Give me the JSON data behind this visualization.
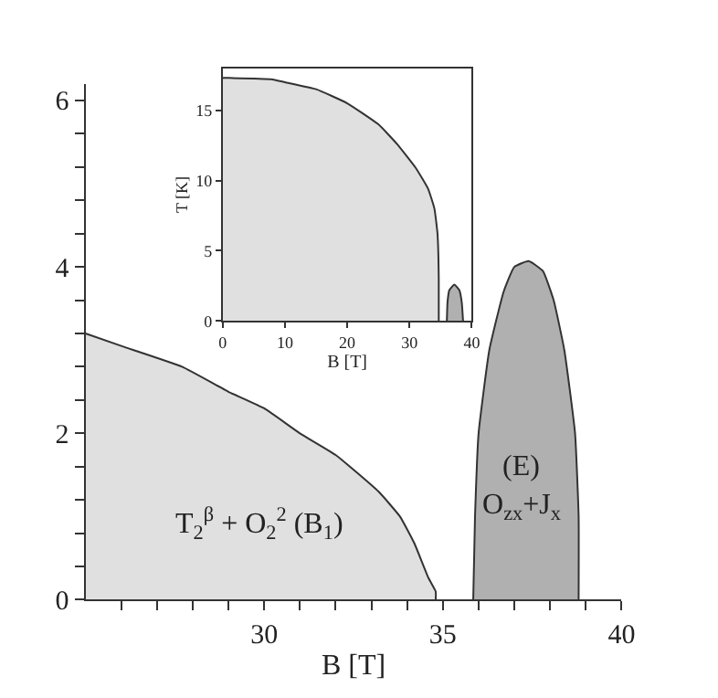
{
  "chart_data": [
    {
      "type": "area",
      "xlabel": "B [T]",
      "xlim": [
        25,
        40
      ],
      "ylim": [
        0,
        6.2
      ],
      "xticks": [
        {
          "value": 26,
          "label": null
        },
        {
          "value": 27,
          "label": null
        },
        {
          "value": 28,
          "label": null
        },
        {
          "value": 29,
          "label": null
        },
        30,
        {
          "value": 31,
          "label": null
        },
        {
          "value": 32,
          "label": null
        },
        {
          "value": 33,
          "label": null
        },
        {
          "value": 34,
          "label": null
        },
        35,
        {
          "value": 36,
          "label": null
        },
        {
          "value": 37,
          "label": null
        },
        {
          "value": 38,
          "label": null
        },
        {
          "value": 39,
          "label": null
        },
        40
      ],
      "yticks": [
        0,
        {
          "value": 0.4,
          "label": null
        },
        {
          "value": 0.8,
          "label": null
        },
        {
          "value": 1.2,
          "label": null
        },
        {
          "value": 1.6,
          "label": null
        },
        2,
        {
          "value": 2.4,
          "label": null
        },
        {
          "value": 2.8,
          "label": null
        },
        {
          "value": 3.2,
          "label": null
        },
        {
          "value": 3.6,
          "label": null
        },
        4,
        {
          "value": 4.4,
          "label": null
        },
        {
          "value": 4.8,
          "label": null
        },
        {
          "value": 5.2,
          "label": null
        },
        {
          "value": 5.6,
          "label": null
        },
        6
      ],
      "marker": "none",
      "line_style": "solid",
      "series": [
        {
          "color": "#e0e0e0",
          "x": [
            25,
            26,
            27.7,
            29,
            30,
            31,
            32,
            33.2,
            33.8,
            34.2,
            34.6,
            34.8,
            34.8
          ],
          "values": [
            3.2,
            3.05,
            2.8,
            2.5,
            2.3,
            2.0,
            1.74,
            1.3,
            1.0,
            0.68,
            0.26,
            0.1,
            0
          ]
        },
        {
          "color": "#b0b0b0",
          "x": [
            35.85,
            35.9,
            36.0,
            36.3,
            36.7,
            37.0,
            37.4,
            37.8,
            38.1,
            38.4,
            38.7,
            38.8,
            38.8
          ],
          "values": [
            0,
            1,
            2,
            3,
            3.7,
            4.0,
            4.07,
            3.95,
            3.6,
            3.0,
            2.0,
            1.0,
            0
          ]
        }
      ],
      "annotations": [
        "T$_{2}$$^{β}$ + O$_{2}$$^{2}$ (B$_{1}$)",
        "(E)",
        "O$_{zx}$+J$_{x}$"
      ]
    },
    {
      "type": "area",
      "xlabel": "B [T]",
      "ylabel": "T [K]",
      "xlim": [
        0,
        40
      ],
      "ylim": [
        0,
        18
      ],
      "xticks": [
        0,
        10,
        20,
        30,
        40
      ],
      "yticks": [
        0,
        5,
        10,
        15
      ],
      "marker": "none",
      "line_style": "solid",
      "series": [
        {
          "color": "#e0e0e0",
          "x": [
            0,
            1,
            8,
            10,
            15,
            20,
            25,
            28,
            31,
            33,
            34,
            34.5,
            34.7,
            34.7
          ],
          "values": [
            17.3,
            17.3,
            17.2,
            17.0,
            16.5,
            15.5,
            14.0,
            12.6,
            10.9,
            9.4,
            8.0,
            6.2,
            3.0,
            0
          ]
        },
        {
          "color": "#b0b0b0",
          "x": [
            36,
            36.1,
            36.4,
            37.2,
            38.0,
            38.4,
            38.6
          ],
          "values": [
            0,
            1.3,
            2.2,
            2.6,
            2.2,
            1.3,
            0
          ]
        }
      ]
    }
  ]
}
